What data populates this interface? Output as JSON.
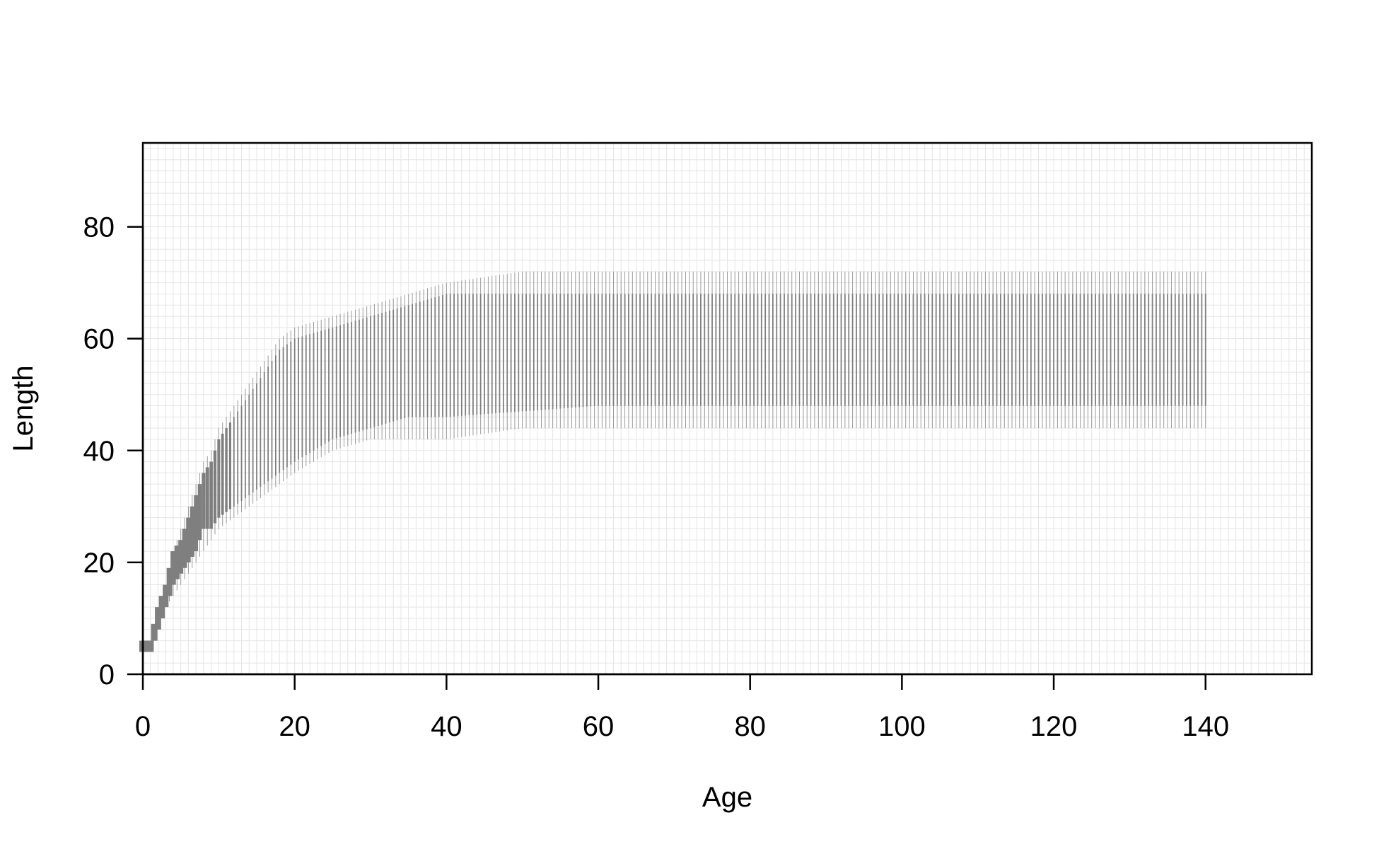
{
  "chart_data": {
    "type": "bar",
    "title": "",
    "xlabel": "Age",
    "ylabel": "Length",
    "xlim": [
      0,
      154
    ],
    "ylim": [
      0,
      95
    ],
    "x_ticks": [
      0,
      20,
      40,
      60,
      80,
      100,
      120,
      140
    ],
    "y_ticks": [
      0,
      20,
      40,
      60,
      80
    ],
    "grid": true,
    "grid_spacing": {
      "x": 1,
      "y": 2
    },
    "colors": {
      "bars": "#7f7f7f",
      "grid": "#e5e5e5",
      "frame": "#000000"
    },
    "description_series": {
      "name": "",
      "x": [
        0,
        1,
        2,
        3,
        4,
        5,
        6,
        7,
        8,
        9,
        10,
        12,
        14,
        16,
        18,
        20,
        25,
        30,
        35,
        40,
        50,
        60,
        80,
        100,
        120,
        140
      ],
      "length_min": [
        4,
        4,
        8,
        12,
        16,
        18,
        20,
        22,
        26,
        26,
        28,
        30,
        32,
        34,
        36,
        38,
        42,
        44,
        46,
        46,
        47,
        48,
        48,
        48,
        48,
        48
      ],
      "length_max": [
        6,
        6,
        12,
        16,
        22,
        24,
        28,
        32,
        36,
        38,
        42,
        46,
        50,
        54,
        58,
        60,
        62,
        64,
        66,
        68,
        68,
        68,
        68,
        68,
        68,
        68
      ],
      "outlier_min": [
        4,
        4,
        8,
        12,
        14,
        16,
        18,
        20,
        22,
        24,
        26,
        28,
        30,
        32,
        34,
        36,
        40,
        42,
        42,
        42,
        44,
        44,
        44,
        44,
        44,
        44
      ],
      "outlier_max": [
        6,
        6,
        12,
        16,
        22,
        26,
        30,
        34,
        38,
        40,
        44,
        48,
        52,
        56,
        60,
        62,
        64,
        66,
        68,
        70,
        72,
        72,
        72,
        72,
        72,
        72
      ]
    }
  }
}
